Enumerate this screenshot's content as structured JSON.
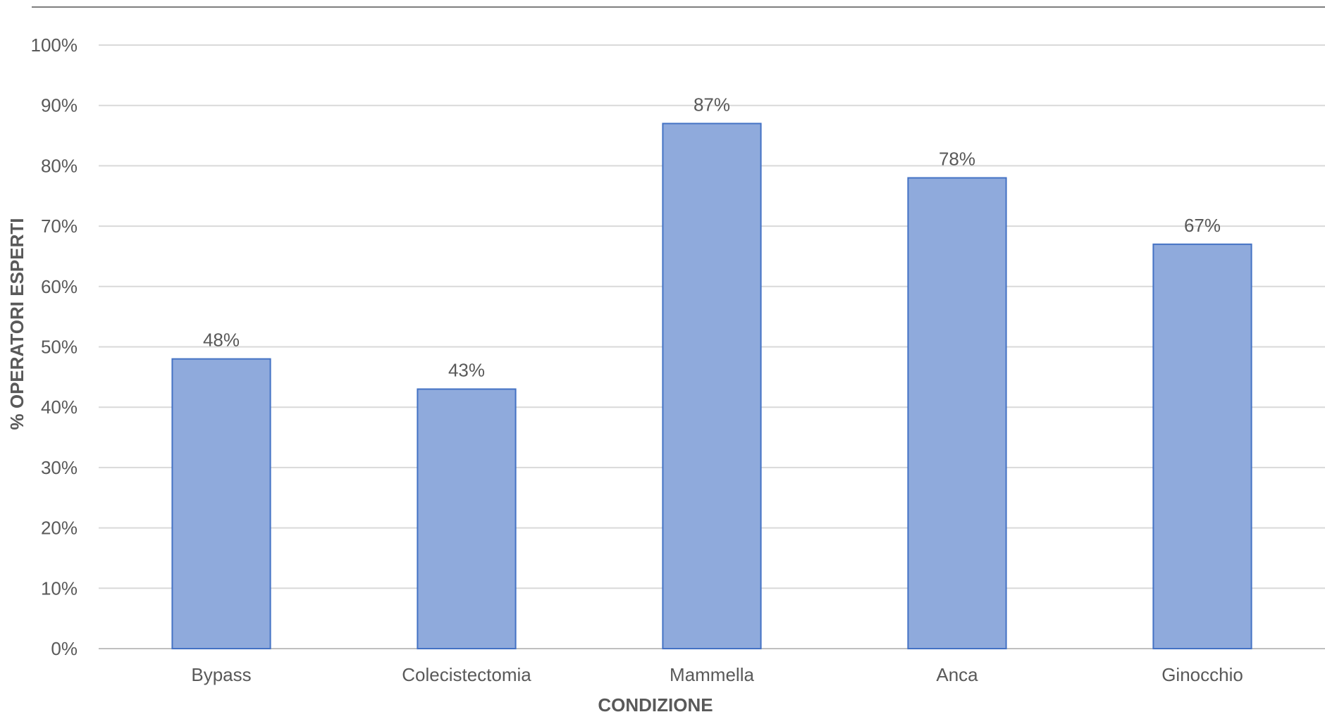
{
  "chart_data": {
    "type": "bar",
    "title": "",
    "xlabel": "CONDIZIONE",
    "ylabel": "% OPERATORI ESPERTI",
    "categories": [
      "Bypass",
      "Colecistectomia",
      "Mammella",
      "Anca",
      "Ginocchio"
    ],
    "values": [
      48,
      43,
      87,
      78,
      67
    ],
    "data_labels": [
      "48%",
      "43%",
      "87%",
      "78%",
      "67%"
    ],
    "ylim": [
      0,
      100
    ],
    "yticks": [
      0,
      10,
      20,
      30,
      40,
      50,
      60,
      70,
      80,
      90,
      100
    ],
    "ytick_labels": [
      "0%",
      "10%",
      "20%",
      "30%",
      "40%",
      "50%",
      "60%",
      "70%",
      "80%",
      "90%",
      "100%"
    ],
    "grid": true,
    "legend": "none",
    "colors": {
      "bar_fill": "#8faadc",
      "bar_stroke": "#4472c4",
      "grid": "#d9d9d9",
      "border": "#7f7f7f",
      "text": "#595959"
    }
  }
}
